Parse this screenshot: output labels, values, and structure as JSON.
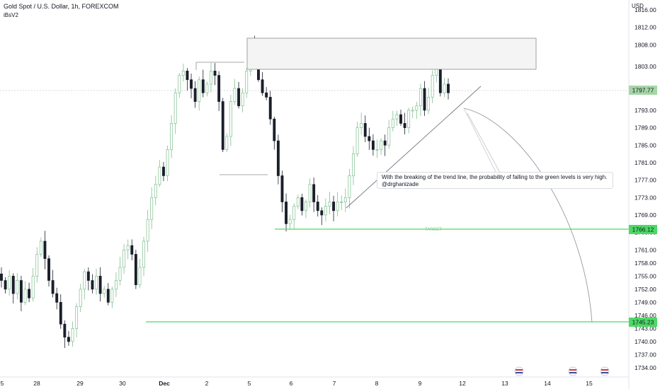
{
  "header": {
    "title": "Gold Spot / U.S. Dollar, 1h, FOREXCOM",
    "indicator": "iBsV2"
  },
  "price_axis": {
    "currency": "USD",
    "ticks": [
      "1816.00",
      "1812.00",
      "1808.00",
      "1803.00",
      "1797.77",
      "1793.00",
      "1789.00",
      "1785.00",
      "1781.00",
      "1777.00",
      "1773.00",
      "1769.00",
      "1766.12",
      "1765.00",
      "1761.00",
      "1758.00",
      "1755.00",
      "1752.00",
      "1749.00",
      "1746.00",
      "1745.23",
      "1743.00",
      "1740.00",
      "1737.00",
      "1734.00"
    ]
  },
  "time_axis": {
    "ticks": [
      "5",
      "28",
      "29",
      "30",
      "Dec",
      "2",
      "5",
      "6",
      "7",
      "8",
      "9",
      "12",
      "13",
      "14",
      "15"
    ]
  },
  "badges": {
    "current": "1797.77",
    "target1": "1766.12",
    "target2": "1745.23"
  },
  "annotations": {
    "target_label": "TARGET",
    "note_line1": "With the breaking of the trend line, the probability of falling to the green levels is very high.",
    "note_line2": "@drghanizade"
  },
  "colors": {
    "up": "#7fbf8f",
    "down": "#1b1f2b",
    "level": "#4cd964",
    "badge_gray": "#a5d6a7",
    "badge_green": "#4cd964"
  },
  "chart_data": {
    "type": "candlestick",
    "symbol": "XAUUSD",
    "timeframe": "1h",
    "ylim": [
      1733,
      1817
    ],
    "levels": [
      1766.12,
      1745.23
    ],
    "current_price": 1797.77,
    "close_path": [
      1754,
      1752,
      1755,
      1751,
      1754,
      1749,
      1752,
      1750,
      1755,
      1760,
      1763,
      1759,
      1754,
      1751,
      1749,
      1744,
      1741,
      1740,
      1743,
      1748,
      1752,
      1756,
      1754,
      1752,
      1755,
      1751,
      1752,
      1749,
      1752,
      1754,
      1757,
      1761,
      1762,
      1760,
      1753,
      1757,
      1763,
      1768,
      1773,
      1776,
      1780,
      1778,
      1784,
      1790,
      1797,
      1801,
      1802,
      1800,
      1798,
      1795,
      1800,
      1797,
      1799,
      1802,
      1801,
      1795,
      1784,
      1787,
      1795,
      1798,
      1794,
      1797,
      1802,
      1808,
      1806,
      1800,
      1797,
      1796,
      1791,
      1786,
      1778,
      1772,
      1767,
      1768,
      1771,
      1773,
      1770,
      1772,
      1776,
      1772,
      1770,
      1769,
      1771,
      1772,
      1770,
      1772,
      1772,
      1773,
      1778,
      1783,
      1789,
      1790,
      1787,
      1786,
      1784,
      1784,
      1786,
      1785,
      1789,
      1791,
      1792,
      1790,
      1789,
      1793,
      1793,
      1794,
      1798,
      1793,
      1796,
      1801,
      1803,
      1797,
      1799,
      1797
    ]
  }
}
